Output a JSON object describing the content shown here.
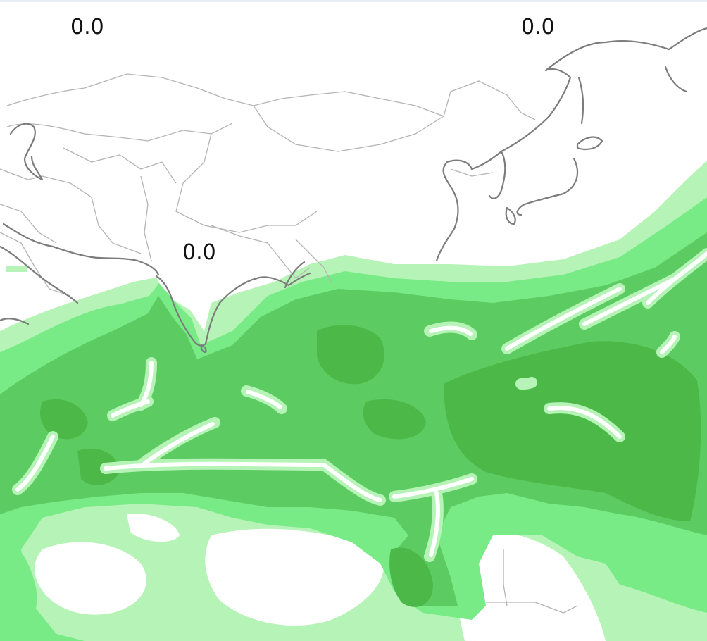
{
  "labels": {
    "northwest": "0.0",
    "northeast": "0.0",
    "india": "0.0"
  },
  "colors": {
    "level1": "#b6f3b6",
    "level2": "#78ea86",
    "level3": "#5ccc62",
    "level4": "#4cb848",
    "coast": "#7c7c7c",
    "border": "#b4b4b4",
    "background": "#ffffff"
  }
}
